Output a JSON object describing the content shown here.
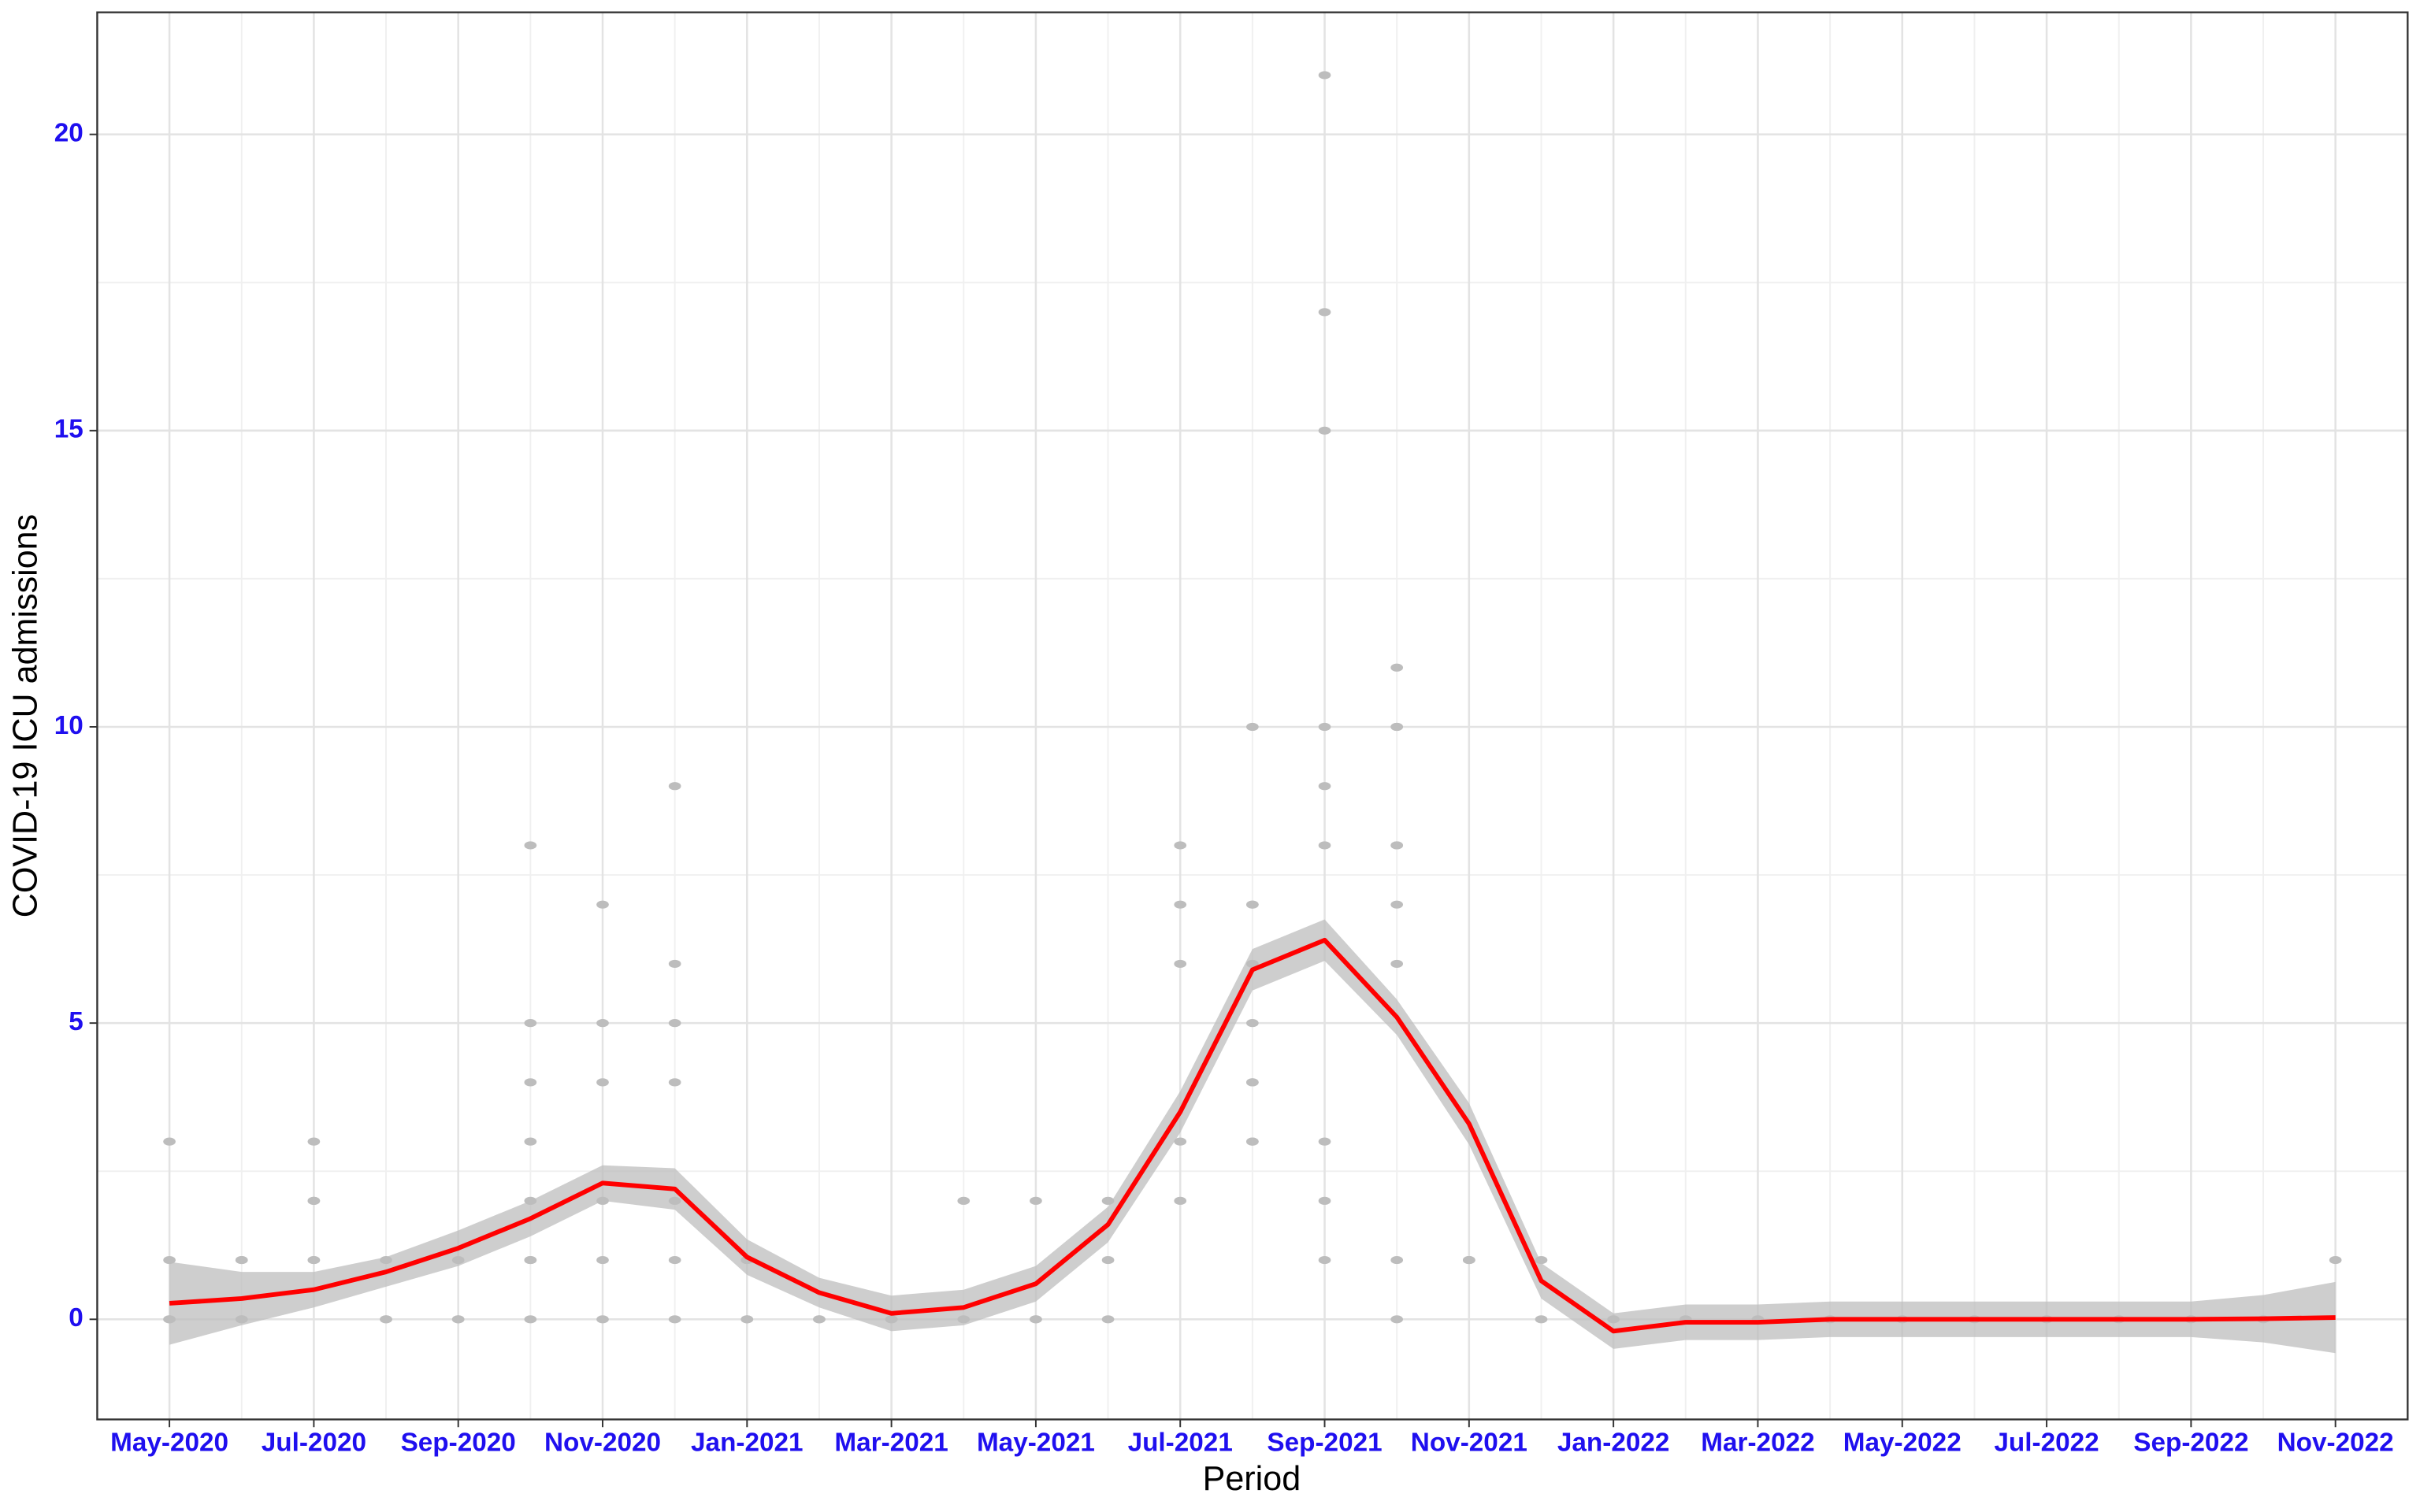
{
  "chart_data": {
    "type": "scatter",
    "x_label": "Period",
    "y_label": "COVID-19 ICU admissions",
    "xlim": [
      "2020-04",
      "2022-12"
    ],
    "ylim": [
      -1.69,
      22.06
    ],
    "xticks": [
      {
        "value": "2020-05",
        "label": "May-2020"
      },
      {
        "value": "2020-07",
        "label": "Jul-2020"
      },
      {
        "value": "2020-09",
        "label": "Sep-2020"
      },
      {
        "value": "2020-11",
        "label": "Nov-2020"
      },
      {
        "value": "2021-01",
        "label": "Jan-2021"
      },
      {
        "value": "2021-03",
        "label": "Mar-2021"
      },
      {
        "value": "2021-05",
        "label": "May-2021"
      },
      {
        "value": "2021-07",
        "label": "Jul-2021"
      },
      {
        "value": "2021-09",
        "label": "Sep-2021"
      },
      {
        "value": "2021-11",
        "label": "Nov-2021"
      },
      {
        "value": "2022-01",
        "label": "Jan-2022"
      },
      {
        "value": "2022-03",
        "label": "Mar-2022"
      },
      {
        "value": "2022-05",
        "label": "May-2022"
      },
      {
        "value": "2022-07",
        "label": "Jul-2022"
      },
      {
        "value": "2022-09",
        "label": "Sep-2022"
      },
      {
        "value": "2022-11",
        "label": "Nov-2022"
      }
    ],
    "yticks": [
      0,
      5,
      10,
      15,
      20
    ],
    "grid": true,
    "tick_label_color": "#1f0fef",
    "point_color": "#bdbdbd",
    "line_color": "#ff0000",
    "band_color": "#bebebe",
    "points": {
      "x": [
        "2020-05",
        "2020-05",
        "2020-05",
        "2020-05",
        "2020-06",
        "2020-06",
        "2020-06",
        "2020-06",
        "2020-07",
        "2020-07",
        "2020-07",
        "2020-07",
        "2020-07",
        "2020-08",
        "2020-08",
        "2020-08",
        "2020-09",
        "2020-09",
        "2020-09",
        "2020-10",
        "2020-10",
        "2020-10",
        "2020-10",
        "2020-10",
        "2020-10",
        "2020-10",
        "2020-10",
        "2020-11",
        "2020-11",
        "2020-11",
        "2020-11",
        "2020-11",
        "2020-11",
        "2020-12",
        "2020-12",
        "2020-12",
        "2020-12",
        "2020-12",
        "2020-12",
        "2020-12",
        "2021-01",
        "2021-01",
        "2021-01",
        "2021-01",
        "2021-02",
        "2021-02",
        "2021-03",
        "2021-03",
        "2021-04",
        "2021-04",
        "2021-05",
        "2021-05",
        "2021-05",
        "2021-06",
        "2021-06",
        "2021-06",
        "2021-07",
        "2021-07",
        "2021-07",
        "2021-07",
        "2021-07",
        "2021-08",
        "2021-08",
        "2021-08",
        "2021-08",
        "2021-08",
        "2021-08",
        "2021-08",
        "2021-08",
        "2021-08",
        "2021-09",
        "2021-09",
        "2021-09",
        "2021-09",
        "2021-09",
        "2021-09",
        "2021-09",
        "2021-09",
        "2021-09",
        "2021-10",
        "2021-10",
        "2021-10",
        "2021-10",
        "2021-10",
        "2021-10",
        "2021-10",
        "2021-10",
        "2021-10",
        "2021-11",
        "2021-11",
        "2021-11",
        "2021-12",
        "2021-12",
        "2022-01",
        "2022-02",
        "2022-03",
        "2022-04",
        "2022-05",
        "2022-06",
        "2022-07",
        "2022-08",
        "2022-09",
        "2022-10",
        "2022-11"
      ],
      "y": [
        0,
        0,
        3,
        1,
        0,
        1,
        0,
        1,
        1,
        2,
        3,
        2,
        1,
        0,
        0,
        1,
        0,
        0,
        1,
        1,
        2,
        4,
        3,
        8,
        5,
        1,
        0,
        7,
        5,
        4,
        2,
        1,
        0,
        0,
        5,
        9,
        6,
        4,
        1,
        2,
        0,
        1,
        0,
        1,
        0,
        0,
        0,
        0,
        2,
        0,
        2,
        0,
        0,
        0,
        1,
        2,
        3,
        2,
        8,
        7,
        6,
        4,
        3,
        7,
        5,
        6,
        3,
        7,
        4,
        10,
        10,
        9,
        8,
        21,
        17,
        15,
        1,
        2,
        3,
        11,
        10,
        8,
        7,
        6,
        10,
        8,
        1,
        0,
        1,
        1,
        1,
        1,
        0,
        0,
        0,
        0,
        0,
        0,
        0,
        0,
        0,
        0,
        0,
        1
      ]
    },
    "smooth": {
      "x": [
        "2020-05",
        "2020-06",
        "2020-07",
        "2020-08",
        "2020-09",
        "2020-10",
        "2020-11",
        "2020-12",
        "2021-01",
        "2021-02",
        "2021-03",
        "2021-04",
        "2021-05",
        "2021-06",
        "2021-07",
        "2021-08",
        "2021-09",
        "2021-10",
        "2021-11",
        "2021-12",
        "2022-01",
        "2022-02",
        "2022-03",
        "2022-04",
        "2022-05",
        "2022-06",
        "2022-07",
        "2022-08",
        "2022-09",
        "2022-10",
        "2022-11"
      ],
      "values": [
        0.27,
        0.35,
        0.5,
        0.8,
        1.2,
        1.7,
        2.3,
        2.2,
        1.05,
        0.45,
        0.1,
        0.2,
        0.6,
        1.6,
        3.5,
        5.9,
        6.4,
        5.1,
        3.3,
        0.65,
        -0.2,
        -0.05,
        -0.05,
        0,
        0,
        0,
        0,
        0,
        0,
        0.01,
        0.03
      ],
      "lower": [
        -0.43,
        -0.1,
        0.2,
        0.55,
        0.9,
        1.4,
        2.0,
        1.85,
        0.75,
        0.2,
        -0.2,
        -0.1,
        0.3,
        1.3,
        3.15,
        5.55,
        6.05,
        4.8,
        2.95,
        0.35,
        -0.5,
        -0.35,
        -0.35,
        -0.3,
        -0.3,
        -0.3,
        -0.3,
        -0.3,
        -0.3,
        -0.39,
        -0.57
      ],
      "upper": [
        0.97,
        0.8,
        0.8,
        1.05,
        1.5,
        2.0,
        2.6,
        2.55,
        1.35,
        0.7,
        0.4,
        0.5,
        0.9,
        1.9,
        3.85,
        6.25,
        6.75,
        5.4,
        3.65,
        0.95,
        0.1,
        0.25,
        0.25,
        0.3,
        0.3,
        0.3,
        0.3,
        0.3,
        0.3,
        0.41,
        0.63
      ]
    }
  }
}
